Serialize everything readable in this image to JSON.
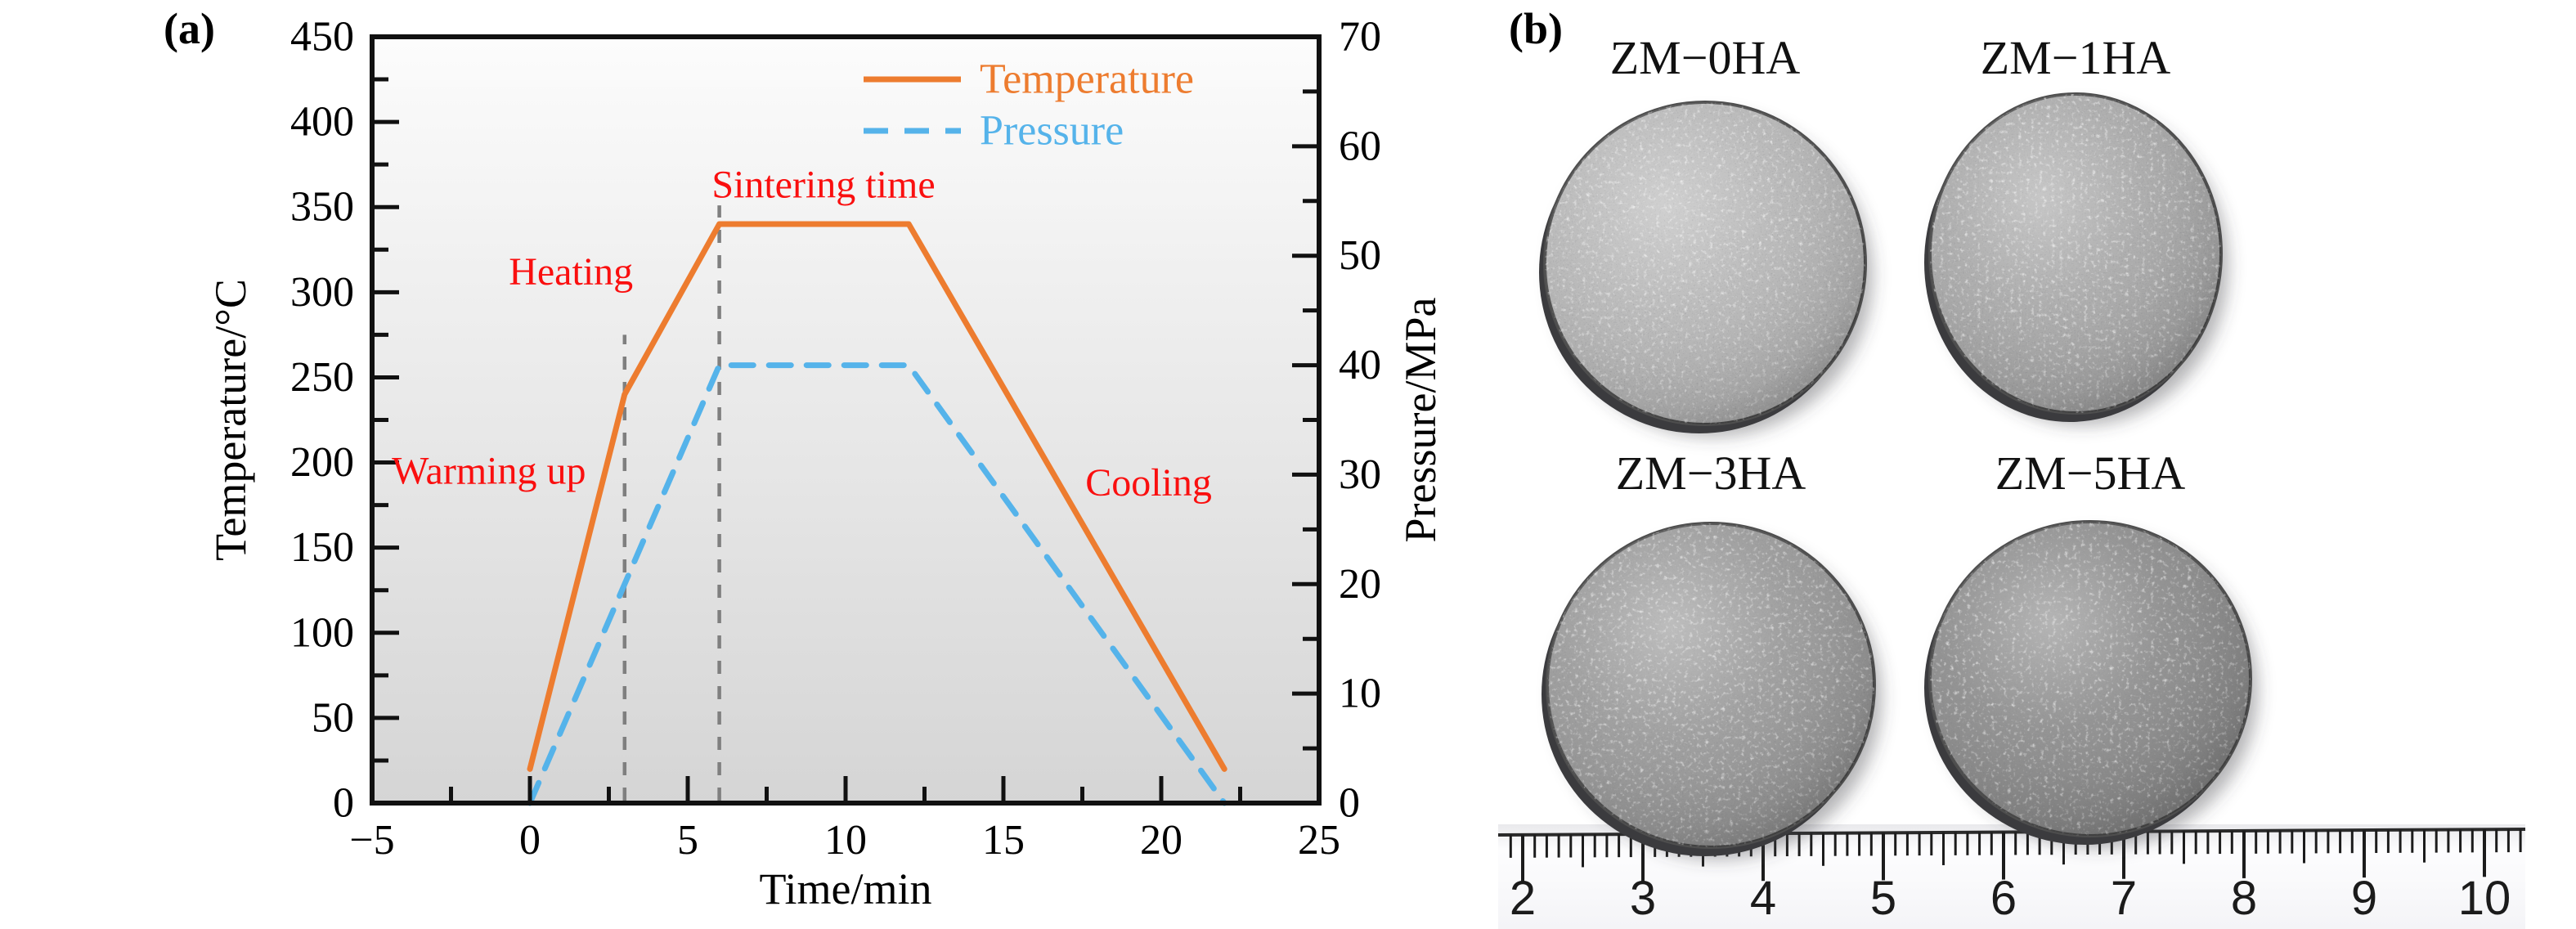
{
  "figure": {
    "panel_a_label": "(a)",
    "panel_b_label": "(b)"
  },
  "chart_data": {
    "type": "line",
    "title": "",
    "xlabel": "Time/min",
    "ylabel_left": "Temperature/°C",
    "ylabel_right": "Pressure/MPa",
    "x_axis": {
      "min": -5,
      "max": 25,
      "major": 5,
      "minor": 2.5
    },
    "y_left": {
      "min": 0,
      "max": 450,
      "major": 50,
      "minor": 25
    },
    "y_right": {
      "min": 0,
      "max": 70,
      "major": 10,
      "minor": 5
    },
    "series": [
      {
        "name": "Temperature",
        "axis": "left",
        "color": "#ed7c2f",
        "style": "solid",
        "points": [
          [
            0,
            20
          ],
          [
            3,
            240
          ],
          [
            6,
            340
          ],
          [
            12,
            340
          ],
          [
            22,
            20
          ]
        ]
      },
      {
        "name": "Pressure",
        "axis": "right",
        "color": "#55b3ea",
        "style": "dashed",
        "points": [
          [
            0,
            0
          ],
          [
            6,
            40
          ],
          [
            12,
            40
          ],
          [
            22,
            0
          ]
        ]
      }
    ],
    "stage_guides": [
      {
        "x": 3,
        "top_temp": 275
      },
      {
        "x": 6,
        "top_temp": 351
      }
    ],
    "annotations": [
      {
        "text": "Warming up",
        "x": -1.3,
        "y_temp": 195
      },
      {
        "text": "Heating",
        "x": 1.3,
        "y_temp": 312
      },
      {
        "text": "Sintering time",
        "x": 9.3,
        "y_temp": 363
      },
      {
        "text": "Cooling",
        "x": 19.6,
        "y_temp": 188
      }
    ],
    "annotation_color": "#fa0f0f",
    "guide_color": "#7f7f7f",
    "legend_position": "top-right-inside",
    "plot_bg_top": "#fcfcfc",
    "plot_bg_bottom": "#d5d5d5"
  },
  "panel_b": {
    "samples": [
      {
        "label": "ZM−0HA",
        "shade": "#b7b7b7"
      },
      {
        "label": "ZM−1HA",
        "shade": "#a9a9a9"
      },
      {
        "label": "ZM−3HA",
        "shade": "#9a9a9a"
      },
      {
        "label": "ZM−5HA",
        "shade": "#8d8d8d"
      }
    ],
    "ruler": {
      "unit_labels": [
        2,
        3,
        4,
        5,
        6,
        7,
        8,
        9,
        10
      ]
    }
  }
}
